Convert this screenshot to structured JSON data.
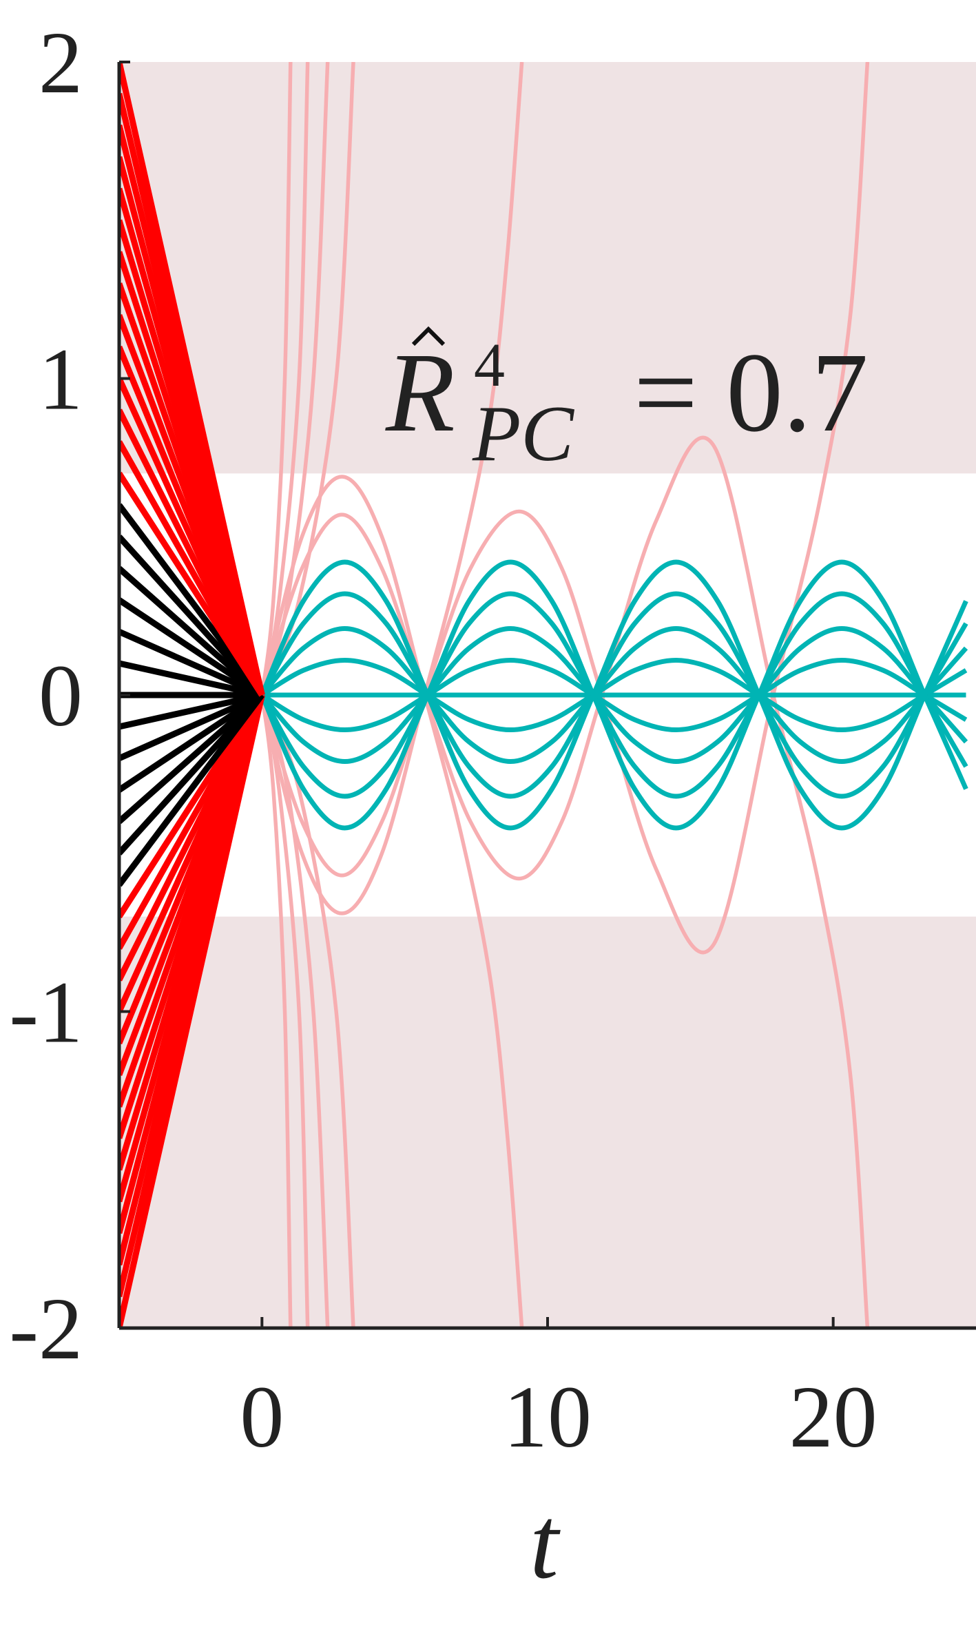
{
  "chart_data": {
    "type": "line",
    "x_label": "t",
    "annotation": {
      "symbol": "R",
      "sup": "4",
      "sub": "PC",
      "rhs": "= 0.7"
    },
    "xlim": [
      -5,
      25
    ],
    "xticks": [
      0,
      10,
      20
    ],
    "ylim": [
      -2,
      2
    ],
    "yticks": [
      2,
      1,
      0,
      -1,
      -2
    ],
    "safe_region": [
      -0.7,
      0.7
    ],
    "band_color": "#efe3e4",
    "fan": {
      "x": [
        -5,
        0
      ],
      "end": 0,
      "inside_color": "#000000",
      "outside_color": "#ff0000",
      "starts": [
        -2,
        -1.9,
        -1.8,
        -1.7,
        -1.6,
        -1.5,
        -1.4,
        -1.3,
        -1.2,
        -1.1,
        -1,
        -0.9,
        -0.8,
        -0.7,
        -0.6,
        -0.5,
        -0.4,
        -0.3,
        -0.2,
        -0.1,
        0,
        0.1,
        0.2,
        0.3,
        0.4,
        0.5,
        0.6,
        0.7,
        0.8,
        0.9,
        1,
        1.1,
        1.2,
        1.3,
        1.4,
        1.5,
        1.6,
        1.7,
        1.8,
        1.9,
        2
      ]
    },
    "oscillating": {
      "color": "#00b4b4",
      "x": [
        0,
        1.45,
        2.9,
        4.35,
        5.8,
        7.25,
        8.7,
        10.15,
        11.6,
        13.05,
        14.5,
        15.95,
        17.4,
        18.85,
        20.3,
        21.75,
        23.2,
        24.65
      ],
      "series": [
        [
          0,
          0.297,
          0.42,
          0.297,
          0,
          -0.297,
          -0.42,
          -0.297,
          0,
          0.297,
          0.42,
          0.297,
          0,
          -0.297,
          -0.42,
          -0.297,
          0,
          0.297
        ],
        [
          0,
          0.226,
          0.32,
          0.226,
          0,
          -0.226,
          -0.32,
          -0.226,
          0,
          0.226,
          0.32,
          0.226,
          0,
          -0.226,
          -0.32,
          -0.226,
          0,
          0.226
        ],
        [
          0,
          0.148,
          0.21,
          0.148,
          0,
          -0.148,
          -0.21,
          -0.148,
          0,
          0.148,
          0.21,
          0.148,
          0,
          -0.148,
          -0.21,
          -0.148,
          0,
          0.148
        ],
        [
          0,
          0.078,
          0.11,
          0.078,
          0,
          -0.078,
          -0.11,
          -0.078,
          0,
          0.078,
          0.11,
          0.078,
          0,
          -0.078,
          -0.11,
          -0.078,
          0,
          0.078
        ],
        [
          0,
          0,
          0,
          0,
          0,
          0,
          0,
          0,
          0,
          0,
          0,
          0,
          0,
          0,
          0,
          0,
          0,
          0
        ],
        [
          0,
          -0.078,
          -0.11,
          -0.078,
          0,
          0.078,
          0.11,
          0.078,
          0,
          -0.078,
          -0.11,
          -0.078,
          0,
          0.078,
          0.11,
          0.078,
          0,
          -0.078
        ],
        [
          0,
          -0.148,
          -0.21,
          -0.148,
          0,
          0.148,
          0.21,
          0.148,
          0,
          -0.148,
          -0.21,
          -0.148,
          0,
          0.148,
          0.21,
          0.148,
          0,
          -0.148
        ],
        [
          0,
          -0.226,
          -0.32,
          -0.226,
          0,
          0.226,
          0.32,
          0.226,
          0,
          -0.226,
          -0.32,
          -0.226,
          0,
          0.226,
          0.32,
          0.226,
          0,
          -0.226
        ],
        [
          0,
          -0.297,
          -0.42,
          -0.297,
          0,
          0.297,
          0.42,
          0.297,
          0,
          -0.297,
          -0.42,
          -0.297,
          0,
          0.297,
          0.42,
          0.297,
          0,
          -0.297
        ]
      ]
    },
    "escaping": {
      "color": "#f7aeb1",
      "series": [
        {
          "x": [
            0,
            1.4,
            2.8,
            4.2,
            5.7,
            7,
            8,
            8.6,
            9.1
          ],
          "values": [
            0,
            0.5,
            0.69,
            0.5,
            0,
            -0.45,
            -0.9,
            -1.4,
            -2
          ]
        },
        {
          "x": [
            0,
            1.4,
            2.8,
            4.2,
            5.7,
            7,
            8,
            8.6,
            9.1
          ],
          "values": [
            0,
            -0.5,
            -0.69,
            -0.5,
            0,
            0.45,
            0.9,
            1.4,
            2
          ]
        },
        {
          "x": [
            0,
            1.4,
            2.8,
            4.2,
            5.7,
            7.3,
            9,
            10.5,
            11.9,
            13.8,
            15.8,
            17.9,
            19.5,
            20.6,
            21.2
          ],
          "values": [
            0,
            0.4,
            0.57,
            0.4,
            0,
            -0.4,
            -0.58,
            -0.4,
            0,
            0.55,
            0.79,
            0,
            -0.6,
            -1.2,
            -2
          ]
        },
        {
          "x": [
            0,
            1.4,
            2.8,
            4.2,
            5.7,
            7.3,
            9,
            10.5,
            11.9,
            13.8,
            15.8,
            17.9,
            19.5,
            20.6,
            21.2
          ],
          "values": [
            0,
            -0.4,
            -0.57,
            -0.4,
            0,
            0.4,
            0.58,
            0.4,
            0,
            -0.55,
            -0.79,
            0,
            0.6,
            1.2,
            2
          ]
        },
        {
          "x": [
            0,
            0.4,
            0.8,
            1.0
          ],
          "values": [
            0,
            0.3,
            1,
            2
          ]
        },
        {
          "x": [
            0,
            0.6,
            1.3,
            1.6
          ],
          "values": [
            0,
            0.3,
            1,
            2
          ]
        },
        {
          "x": [
            0,
            0.9,
            1.8,
            2.3
          ],
          "values": [
            0,
            0.3,
            1,
            2
          ]
        },
        {
          "x": [
            0,
            1.3,
            2.6,
            3.2
          ],
          "values": [
            0,
            0.3,
            1,
            2
          ]
        },
        {
          "x": [
            0,
            0.4,
            0.8,
            1.0
          ],
          "values": [
            0,
            -0.3,
            -1,
            -2
          ]
        },
        {
          "x": [
            0,
            0.6,
            1.3,
            1.6
          ],
          "values": [
            0,
            -0.3,
            -1,
            -2
          ]
        },
        {
          "x": [
            0,
            0.9,
            1.8,
            2.3
          ],
          "values": [
            0,
            -0.3,
            -1,
            -2
          ]
        },
        {
          "x": [
            0,
            1.3,
            2.6,
            3.2
          ],
          "values": [
            0,
            -0.3,
            -1,
            -2
          ]
        }
      ]
    }
  }
}
